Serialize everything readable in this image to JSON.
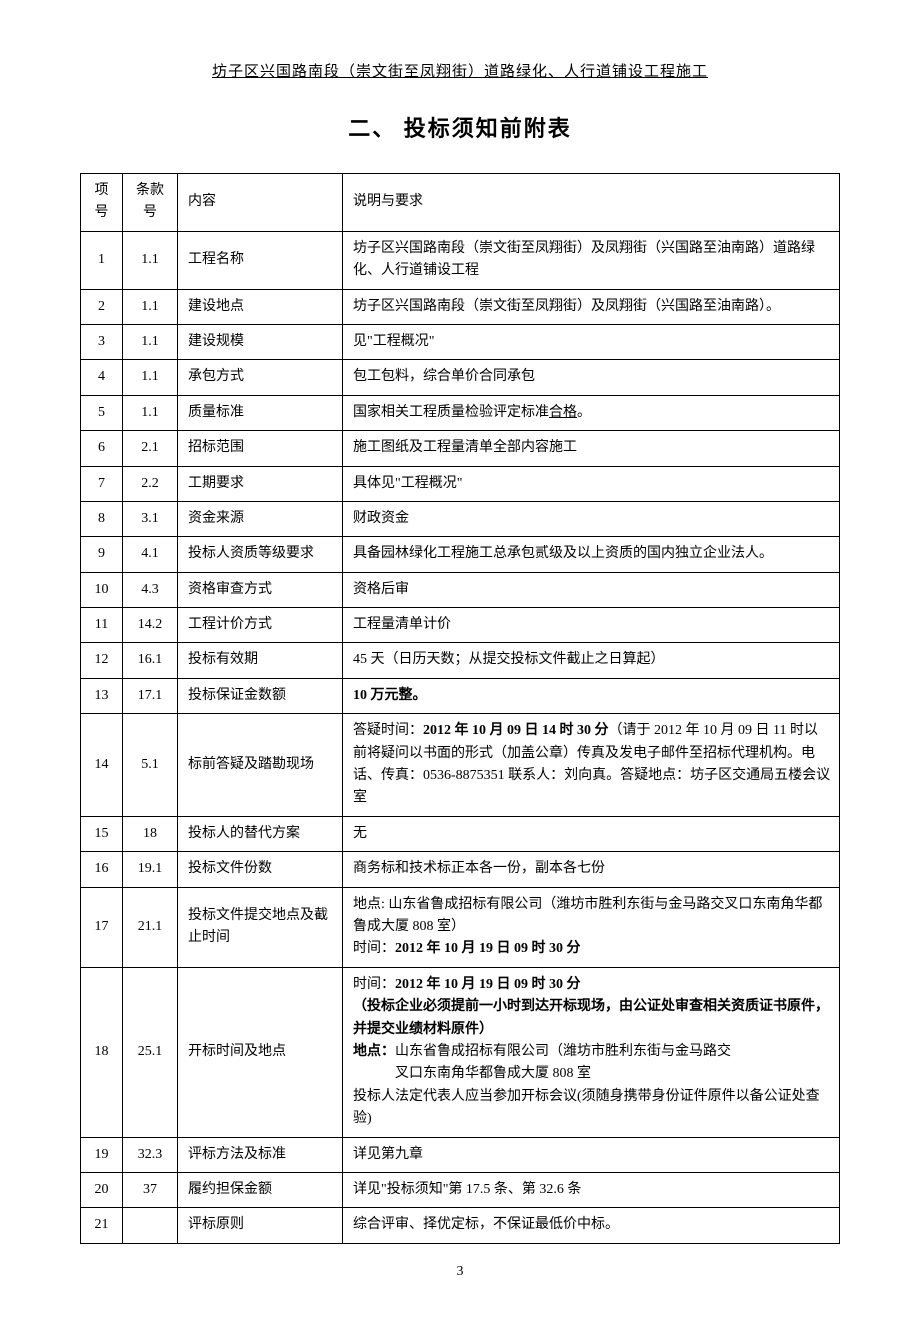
{
  "header": "坊子区兴国路南段（崇文街至凤翔街）道路绿化、人行道铺设工程施工",
  "section_title": "二、 投标须知前附表",
  "table": {
    "headers": {
      "num": "项号",
      "clause": "条款号",
      "content": "内容",
      "desc": "说明与要求"
    },
    "rows": [
      {
        "num": "1",
        "clause": "1.1",
        "content": "工程名称",
        "desc": "坊子区兴国路南段（崇文街至凤翔街）及凤翔街（兴国路至油南路）道路绿化、人行道铺设工程"
      },
      {
        "num": "2",
        "clause": "1.1",
        "content": "建设地点",
        "desc": "坊子区兴国路南段（崇文街至凤翔街）及凤翔街（兴国路至油南路）。"
      },
      {
        "num": "3",
        "clause": "1.1",
        "content": "建设规模",
        "desc": "见\"工程概况\""
      },
      {
        "num": "4",
        "clause": "1.1",
        "content": "承包方式",
        "desc": "包工包料，综合单价合同承包"
      },
      {
        "num": "5",
        "clause": "1.1",
        "content": "质量标准",
        "desc_html": "国家相关工程质量检验评定标准<span class=\"underline\">合格</span>。"
      },
      {
        "num": "6",
        "clause": "2.1",
        "content": "招标范围",
        "desc": "施工图纸及工程量清单全部内容施工"
      },
      {
        "num": "7",
        "clause": "2.2",
        "content": "工期要求",
        "desc": "具体见\"工程概况\""
      },
      {
        "num": "8",
        "clause": "3.1",
        "content": "资金来源",
        "desc": "财政资金"
      },
      {
        "num": "9",
        "clause": "4.1",
        "content": "投标人资质等级要求",
        "desc": "具备园林绿化工程施工总承包贰级及以上资质的国内独立企业法人。"
      },
      {
        "num": "10",
        "clause": "4.3",
        "content": "资格审查方式",
        "desc": "资格后审"
      },
      {
        "num": "11",
        "clause": "14.2",
        "content": "工程计价方式",
        "desc": "工程量清单计价"
      },
      {
        "num": "12",
        "clause": "16.1",
        "content": "投标有效期",
        "desc": "45 天（日历天数；从提交投标文件截止之日算起）"
      },
      {
        "num": "13",
        "clause": "17.1",
        "content": "投标保证金数额",
        "desc_html": "<span class=\"bold\">10 万元整。</span>"
      },
      {
        "num": "14",
        "clause": "5.1",
        "content": "标前答疑及踏勘现场",
        "desc_html": "答疑时间：<span class=\"bold\">2012 年 10 月 09 日 14 时 30 分</span>（请于 2012 年 10 月 09 日 11 时以前将疑问以书面的形式（加盖公章）传真及发电子邮件至招标代理机构。电话、传真：0536-8875351 联系人：刘向真。答疑地点：坊子区交通局五楼会议室"
      },
      {
        "num": "15",
        "clause": "18",
        "content": "投标人的替代方案",
        "desc": "无"
      },
      {
        "num": "16",
        "clause": "19.1",
        "content": "投标文件份数",
        "desc": "商务标和技术标正本各一份，副本各七份"
      },
      {
        "num": "17",
        "clause": "21.1",
        "content": "投标文件提交地点及截止时间",
        "desc_html": "地点: 山东省鲁成招标有限公司（潍坊市胜利东街与金马路交叉口东南角华都鲁成大厦 808 室）<br>时间：<span class=\"bold\">2012 年 10 月 19 日 09 时 30 分</span>"
      },
      {
        "num": "18",
        "clause": "25.1",
        "content": "开标时间及地点",
        "desc_html": "时间：<span class=\"bold\">2012 年 10 月 19 日 09 时 30 分<br>（投标企业必须提前一小时到达开标现场，由公证处审查相关资质证书原件，并提交业绩材料原件）<br>地点：</span>山东省鲁成招标有限公司（潍坊市胜利东街与金马路交<span class=\"indent\">叉口东南角华都鲁成大厦 808 室</span>投标人法定代表人应当参加开标会议(须随身携带身份证件原件以备公证处查验)"
      },
      {
        "num": "19",
        "clause": "32.3",
        "content": "评标方法及标准",
        "desc": "详见第九章"
      },
      {
        "num": "20",
        "clause": "37",
        "content": "履约担保金额",
        "desc": "详见\"投标须知\"第 17.5 条、第 32.6 条"
      },
      {
        "num": "21",
        "clause": "",
        "content": "评标原则",
        "desc": "综合评审、择优定标，不保证最低价中标。"
      }
    ]
  },
  "page_number": "3"
}
